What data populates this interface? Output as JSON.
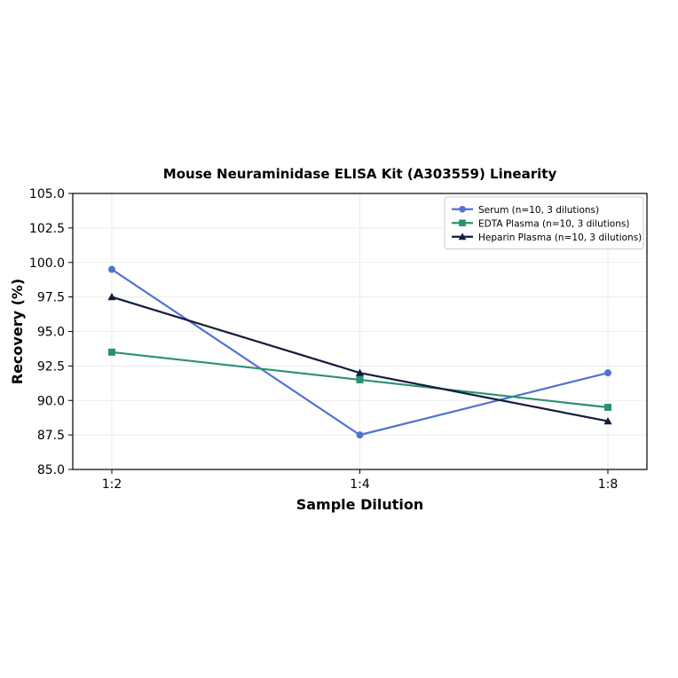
{
  "chart_data": {
    "type": "line",
    "title": "Mouse Neuraminidase ELISA Kit (A303559) Linearity",
    "xlabel": "Sample Dilution",
    "ylabel": "Recovery (%)",
    "categories": [
      "1:2",
      "1:4",
      "1:8"
    ],
    "ylim": [
      85.0,
      105.0
    ],
    "yticks": [
      "85.0",
      "87.5",
      "90.0",
      "92.5",
      "95.0",
      "97.5",
      "100.0",
      "102.5",
      "105.0"
    ],
    "grid": true,
    "legend_position": "top-right",
    "series": [
      {
        "name": "Serum (n=10, 3 dilutions)",
        "values": [
          99.5,
          87.5,
          92.0
        ],
        "color": "#4f73d1",
        "marker": "circle"
      },
      {
        "name": "EDTA Plasma (n=10, 3 dilutions)",
        "values": [
          93.5,
          91.5,
          89.5
        ],
        "color": "#2a9171",
        "marker": "square"
      },
      {
        "name": "Heparin Plasma (n=10, 3 dilutions)",
        "values": [
          97.5,
          92.0,
          88.5
        ],
        "color": "#131c3f",
        "marker": "triangle"
      }
    ]
  }
}
